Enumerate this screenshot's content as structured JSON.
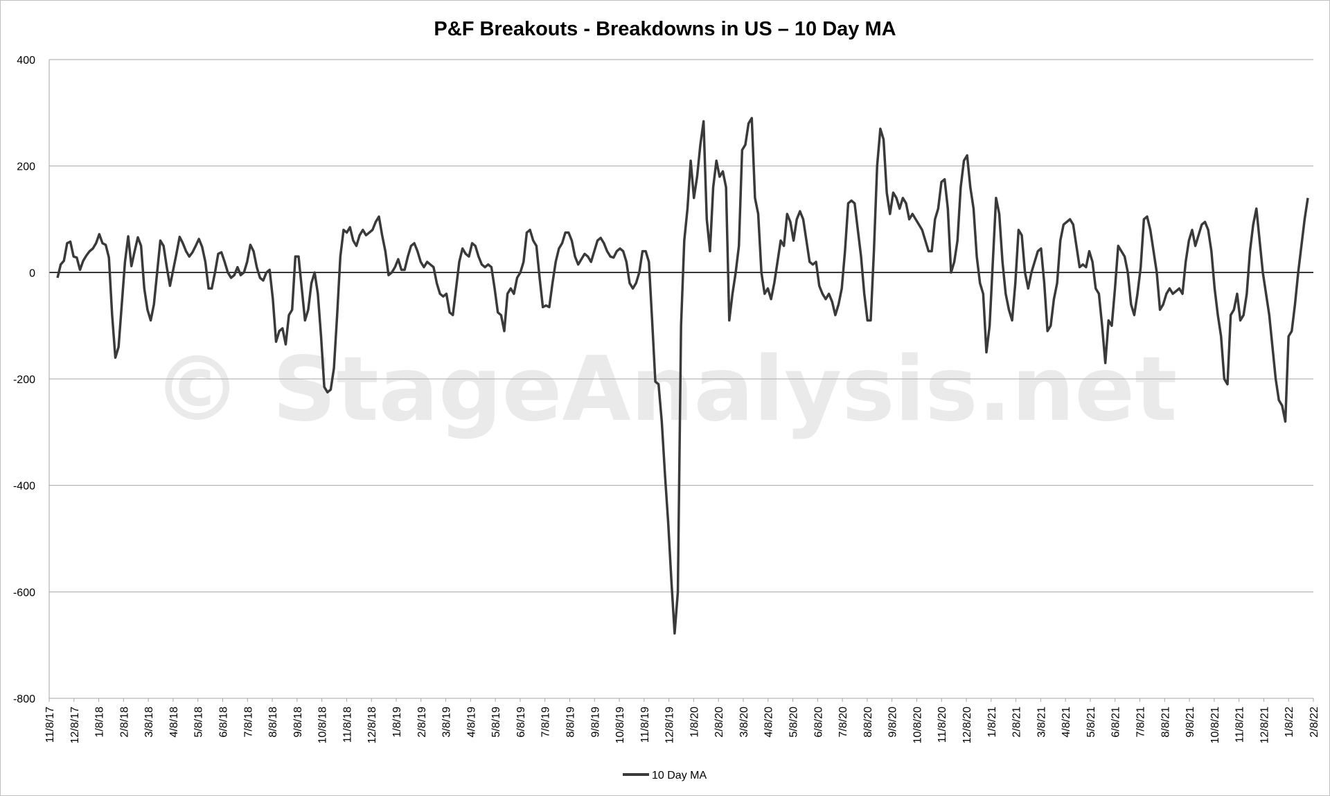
{
  "chart_data": {
    "type": "line",
    "title": "P&F Breakouts - Breakdowns in US – 10 Day MA",
    "xlabel": "",
    "ylabel": "",
    "ylim": [
      -800,
      400
    ],
    "yticks": [
      400,
      200,
      0,
      -200,
      -400,
      -600,
      -800
    ],
    "yticks_display": [
      "400",
      "200",
      "0",
      "-200",
      "-400",
      "-600",
      "-800"
    ],
    "grid": "horizontal",
    "legend_position": "bottom-center",
    "watermark": "© StageAnalysis.net",
    "colors": {
      "line": "#3a3a3a",
      "grid": "#a6a6a6",
      "zero_line": "#000000",
      "watermark": "#d9d9d9"
    },
    "x_tick_labels": [
      "11/8/17",
      "12/8/17",
      "1/8/18",
      "2/8/18",
      "3/8/18",
      "4/8/18",
      "5/8/18",
      "6/8/18",
      "7/8/18",
      "8/8/18",
      "9/8/18",
      "10/8/18",
      "11/8/18",
      "12/8/18",
      "1/8/19",
      "2/8/19",
      "3/8/19",
      "4/8/19",
      "5/8/19",
      "6/8/19",
      "7/8/19",
      "8/8/19",
      "9/8/19",
      "10/8/19",
      "11/8/19",
      "12/8/19",
      "1/8/20",
      "2/8/20",
      "3/8/20",
      "4/8/20",
      "5/8/20",
      "6/8/20",
      "7/8/20",
      "8/8/20",
      "9/8/20",
      "10/8/20",
      "11/8/20",
      "12/8/20",
      "1/8/21",
      "2/8/21",
      "3/8/21",
      "4/8/21",
      "5/8/21",
      "6/8/21",
      "7/8/21",
      "8/8/21",
      "9/8/21",
      "10/8/21",
      "11/8/21",
      "12/8/21",
      "1/8/22",
      "2/8/22"
    ],
    "series": [
      {
        "name": "10 Day MA",
        "x_start": "11/8/17",
        "x_end": "2/11/22",
        "values": [
          -10,
          15,
          22,
          55,
          58,
          30,
          28,
          5,
          22,
          32,
          40,
          45,
          55,
          72,
          55,
          52,
          28,
          -80,
          -160,
          -140,
          -60,
          20,
          68,
          12,
          40,
          66,
          50,
          -30,
          -70,
          -90,
          -60,
          0,
          60,
          50,
          10,
          -25,
          5,
          35,
          67,
          55,
          40,
          30,
          38,
          50,
          63,
          48,
          20,
          -30,
          -30,
          0,
          35,
          38,
          20,
          0,
          -10,
          -5,
          10,
          -5,
          0,
          20,
          52,
          40,
          10,
          -10,
          -15,
          0,
          5,
          -50,
          -130,
          -110,
          -105,
          -135,
          -80,
          -70,
          30,
          30,
          -30,
          -90,
          -70,
          -20,
          0,
          -40,
          -120,
          -215,
          -225,
          -220,
          -180,
          -80,
          30,
          80,
          75,
          85,
          60,
          50,
          70,
          80,
          70,
          75,
          80,
          95,
          105,
          70,
          40,
          -5,
          0,
          10,
          25,
          5,
          5,
          30,
          50,
          55,
          40,
          20,
          10,
          20,
          15,
          10,
          -20,
          -40,
          -45,
          -40,
          -75,
          -80,
          -30,
          20,
          45,
          35,
          30,
          55,
          50,
          30,
          15,
          10,
          15,
          10,
          -30,
          -75,
          -80,
          -110,
          -40,
          -30,
          -40,
          -10,
          0,
          20,
          75,
          80,
          60,
          50,
          -10,
          -65,
          -62,
          -65,
          -20,
          20,
          45,
          55,
          75,
          75,
          60,
          30,
          15,
          25,
          35,
          30,
          20,
          40,
          60,
          65,
          55,
          40,
          30,
          28,
          40,
          45,
          40,
          20,
          -20,
          -30,
          -20,
          0,
          40,
          40,
          20,
          -90,
          -205,
          -210,
          -280,
          -380,
          -470,
          -580,
          -678,
          -600,
          -100,
          60,
          120,
          210,
          140,
          180,
          240,
          284,
          100,
          40,
          160,
          210,
          180,
          190,
          160,
          -90,
          -40,
          0,
          50,
          230,
          240,
          280,
          290,
          140,
          110,
          0,
          -40,
          -30,
          -50,
          -20,
          20,
          60,
          50,
          110,
          95,
          60,
          100,
          115,
          100,
          60,
          20,
          15,
          20,
          -25,
          -40,
          -50,
          -40,
          -55,
          -80,
          -60,
          -30,
          40,
          130,
          135,
          130,
          80,
          30,
          -40,
          -90,
          -90,
          40,
          200,
          270,
          250,
          150,
          110,
          150,
          140,
          120,
          140,
          130,
          100,
          110,
          100,
          90,
          80,
          60,
          40,
          40,
          100,
          120,
          170,
          175,
          120,
          0,
          20,
          60,
          160,
          210,
          220,
          160,
          120,
          30,
          -20,
          -40,
          -150,
          -100,
          20,
          140,
          110,
          20,
          -40,
          -70,
          -90,
          -20,
          80,
          70,
          0,
          -30,
          0,
          20,
          40,
          45,
          -20,
          -110,
          -100,
          -50,
          -20,
          60,
          90,
          95,
          100,
          90,
          50,
          10,
          15,
          10,
          40,
          20,
          -30,
          -40,
          -100,
          -170,
          -90,
          -100,
          -30,
          50,
          40,
          30,
          0,
          -60,
          -80,
          -40,
          10,
          100,
          105,
          80,
          40,
          0,
          -70,
          -60,
          -40,
          -30,
          -40,
          -35,
          -30,
          -40,
          20,
          60,
          80,
          50,
          70,
          90,
          95,
          80,
          40,
          -30,
          -80,
          -120,
          -200,
          -210,
          -80,
          -70,
          -40,
          -90,
          -80,
          -40,
          40,
          90,
          120,
          60,
          0,
          -40,
          -80,
          -140,
          -200,
          -240,
          -250,
          -280,
          -120,
          -110,
          -60,
          0,
          50,
          100,
          140
        ]
      }
    ]
  }
}
